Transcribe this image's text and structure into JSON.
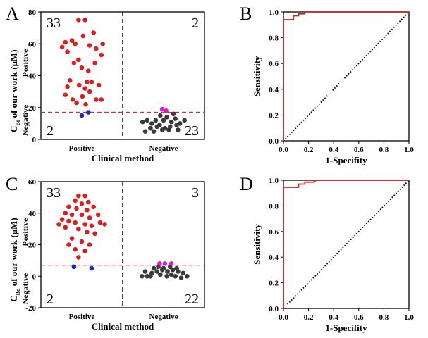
{
  "colors": {
    "positive_dot": "#d92020",
    "negative_dot": "#3a3a3a",
    "false_neg_dot": "#2323c8",
    "false_pos_dot": "#d620d6",
    "threshold": "#d23030",
    "roc": "#c0282c",
    "diagonal": "#000000"
  },
  "chart_data": [
    {
      "id": "A",
      "type": "scatter",
      "panel_label": "A",
      "xlabel": "Clinical method",
      "ylabel_main": "C",
      "ylabel_sub": "Bt",
      "ylabel_rest": " of our work (μM)",
      "side_labels": [
        "Positive",
        "Negative"
      ],
      "categories": [
        "Positive",
        "Negative"
      ],
      "ylim": [
        0,
        80
      ],
      "yticks": [
        "0",
        "20",
        "40",
        "60",
        "80"
      ],
      "threshold": 17,
      "counts": {
        "top_left": "33",
        "top_right": "2",
        "bottom_left": "2",
        "bottom_right": "23"
      },
      "series": [
        {
          "group": "tp",
          "values": [
            [
              -0.25,
              61
            ],
            [
              -0.15,
              62
            ],
            [
              -0.05,
              75
            ],
            [
              0.05,
              75
            ],
            [
              0.18,
              67
            ],
            [
              0.32,
              60
            ],
            [
              -0.3,
              58
            ],
            [
              -0.22,
              55
            ],
            [
              -0.1,
              60
            ],
            [
              0.02,
              65
            ],
            [
              0.12,
              59
            ],
            [
              0.22,
              57
            ],
            [
              0.3,
              53
            ],
            [
              -0.12,
              48
            ],
            [
              0.0,
              45
            ],
            [
              0.1,
              43
            ],
            [
              0.2,
              48
            ],
            [
              -0.05,
              50
            ],
            [
              0.08,
              36
            ],
            [
              -0.18,
              37
            ],
            [
              -0.22,
              33
            ],
            [
              -0.04,
              34
            ],
            [
              0.05,
              32
            ],
            [
              0.15,
              36
            ],
            [
              0.26,
              34
            ],
            [
              -0.25,
              28
            ],
            [
              -0.14,
              25
            ],
            [
              0.01,
              27
            ],
            [
              0.12,
              30
            ],
            [
              0.22,
              25
            ],
            [
              0.3,
              25
            ],
            [
              -0.08,
              23
            ],
            [
              0.06,
              22
            ]
          ]
        },
        {
          "group": "fn",
          "values": [
            [
              0.0,
              15
            ],
            [
              0.1,
              17
            ]
          ]
        },
        {
          "group": "tn",
          "values": [
            [
              -0.32,
              11
            ],
            [
              -0.25,
              12
            ],
            [
              -0.18,
              10
            ],
            [
              -0.12,
              12
            ],
            [
              -0.06,
              9
            ],
            [
              0.0,
              12
            ],
            [
              0.05,
              14
            ],
            [
              0.12,
              11
            ],
            [
              0.18,
              13
            ],
            [
              0.25,
              10
            ],
            [
              0.32,
              12
            ],
            [
              -0.2,
              7
            ],
            [
              -0.1,
              8
            ],
            [
              0.02,
              7
            ],
            [
              0.1,
              8
            ],
            [
              0.2,
              9
            ],
            [
              -0.28,
              5
            ],
            [
              -0.15,
              5
            ],
            [
              -0.02,
              6
            ],
            [
              0.08,
              6
            ],
            [
              0.22,
              6
            ],
            [
              -0.05,
              15
            ],
            [
              0.15,
              16
            ]
          ]
        },
        {
          "group": "fp",
          "values": [
            [
              -0.02,
              19
            ],
            [
              0.04,
              18
            ]
          ]
        }
      ]
    },
    {
      "id": "B",
      "type": "line",
      "panel_label": "B",
      "xlabel": "1-Specifity",
      "ylabel": "Sensitivity",
      "xlim": [
        0,
        1
      ],
      "ylim": [
        0,
        1
      ],
      "xticks": [
        "0.0",
        "0.2",
        "0.4",
        "0.6",
        "0.8",
        "1.0"
      ],
      "yticks": [
        "0.0",
        "0.2",
        "0.4",
        "0.6",
        "0.8",
        "1.0"
      ],
      "roc": [
        [
          0,
          0
        ],
        [
          0,
          0.94
        ],
        [
          0.08,
          0.94
        ],
        [
          0.08,
          0.97
        ],
        [
          0.12,
          0.97
        ],
        [
          0.12,
          0.985
        ],
        [
          0.17,
          0.985
        ],
        [
          0.17,
          1.0
        ],
        [
          1,
          1
        ]
      ]
    },
    {
      "id": "C",
      "type": "scatter",
      "panel_label": "C",
      "xlabel": "Clinical method",
      "ylabel_main": "C",
      "ylabel_sub": "Bd",
      "ylabel_rest": " of our work (μM)",
      "side_labels": [
        "Positive",
        "Negative"
      ],
      "categories": [
        "Positive",
        "Negative"
      ],
      "ylim": [
        -20,
        60
      ],
      "yticks": [
        "-20",
        "0",
        "20",
        "40",
        "60"
      ],
      "threshold": 7,
      "counts": {
        "top_left": "33",
        "top_right": "3",
        "bottom_left": "2",
        "bottom_right": "22"
      },
      "series": [
        {
          "group": "tp",
          "values": [
            [
              -0.05,
              51
            ],
            [
              0.05,
              51
            ],
            [
              -0.1,
              48
            ],
            [
              0.0,
              46
            ],
            [
              0.1,
              47
            ],
            [
              -0.2,
              44
            ],
            [
              -0.08,
              43
            ],
            [
              0.08,
              42
            ],
            [
              0.18,
              44
            ],
            [
              -0.25,
              40
            ],
            [
              -0.15,
              39
            ],
            [
              0.0,
              39
            ],
            [
              0.12,
              37
            ],
            [
              0.25,
              39
            ],
            [
              -0.3,
              36
            ],
            [
              -0.2,
              35
            ],
            [
              -0.1,
              34
            ],
            [
              0.05,
              33
            ],
            [
              0.15,
              32
            ],
            [
              0.28,
              34
            ],
            [
              -0.35,
              33
            ],
            [
              0.35,
              33
            ],
            [
              -0.25,
              31
            ],
            [
              -0.05,
              30
            ],
            [
              0.08,
              28
            ],
            [
              0.2,
              27
            ],
            [
              -0.15,
              24
            ],
            [
              0.0,
              22
            ],
            [
              0.12,
              20
            ],
            [
              -0.2,
              20
            ],
            [
              -0.1,
              17
            ],
            [
              0.05,
              16
            ],
            [
              -0.05,
              12
            ]
          ]
        },
        {
          "group": "fn",
          "values": [
            [
              -0.12,
              6
            ],
            [
              0.15,
              5
            ]
          ]
        },
        {
          "group": "tn",
          "values": [
            [
              -0.33,
              0
            ],
            [
              -0.25,
              0
            ],
            [
              -0.18,
              2
            ],
            [
              -0.1,
              3
            ],
            [
              -0.02,
              4
            ],
            [
              0.06,
              3
            ],
            [
              0.14,
              4
            ],
            [
              0.22,
              3
            ],
            [
              0.3,
              2
            ],
            [
              0.36,
              0
            ],
            [
              -0.28,
              3
            ],
            [
              -0.15,
              5
            ],
            [
              0.0,
              5
            ],
            [
              0.1,
              6
            ],
            [
              0.2,
              5
            ],
            [
              -0.08,
              6
            ],
            [
              -0.2,
              0
            ],
            [
              0.05,
              0
            ],
            [
              0.18,
              0
            ],
            [
              0.27,
              -1
            ],
            [
              -0.05,
              1
            ],
            [
              0.12,
              1
            ]
          ]
        },
        {
          "group": "fp",
          "values": [
            [
              -0.06,
              8
            ],
            [
              0.02,
              8
            ],
            [
              0.12,
              8
            ]
          ]
        }
      ]
    },
    {
      "id": "D",
      "type": "line",
      "panel_label": "D",
      "xlabel": "1-Specifity",
      "ylabel": "Sensitivity",
      "xlim": [
        0,
        1
      ],
      "ylim": [
        0,
        1
      ],
      "xticks": [
        "0.0",
        "0.2",
        "0.4",
        "0.6",
        "0.8",
        "1.0"
      ],
      "yticks": [
        "0.0",
        "0.2",
        "0.4",
        "0.6",
        "0.8",
        "1.0"
      ],
      "roc": [
        [
          0,
          0
        ],
        [
          0,
          0.945
        ],
        [
          0.12,
          0.945
        ],
        [
          0.12,
          0.97
        ],
        [
          0.17,
          0.97
        ],
        [
          0.17,
          0.985
        ],
        [
          0.24,
          0.985
        ],
        [
          0.26,
          1.0
        ],
        [
          1,
          1
        ]
      ]
    }
  ]
}
